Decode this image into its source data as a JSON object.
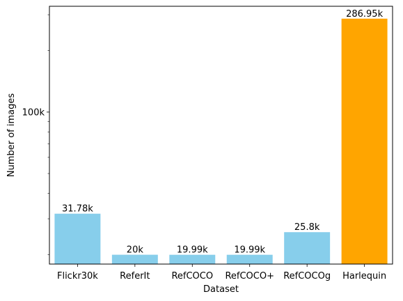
{
  "chart_data": {
    "type": "bar",
    "title": "",
    "xlabel": "Dataset",
    "ylabel": "Number of images",
    "yscale": "log",
    "ylim": [
      18000,
      330000
    ],
    "yticks_major": [
      {
        "value": 100000,
        "label": "100k"
      }
    ],
    "yticks_minor": [
      20000,
      30000,
      40000,
      50000,
      60000,
      70000,
      80000,
      90000,
      200000,
      300000
    ],
    "grid": false,
    "legend": "none",
    "categories": [
      "Flickr30k",
      "ReferIt",
      "RefCOCO",
      "RefCOCO+",
      "RefCOCOg",
      "Harlequin"
    ],
    "values": [
      31780,
      20000,
      19990,
      19990,
      25800,
      286950
    ],
    "value_labels": [
      "31.78k",
      "20k",
      "19.99k",
      "19.99k",
      "25.8k",
      "286.95k"
    ],
    "colors": [
      "#87ceeb",
      "#87ceeb",
      "#87ceeb",
      "#87ceeb",
      "#87ceeb",
      "#ffa500"
    ]
  }
}
